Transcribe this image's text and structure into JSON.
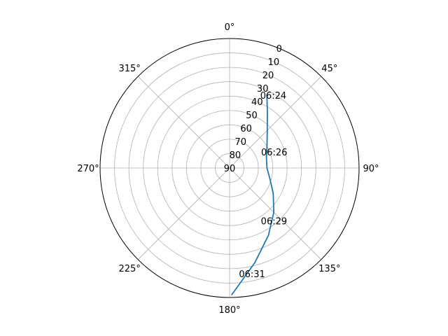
{
  "chart_data": {
    "type": "line",
    "projection": "polar",
    "theta_zero_location": "N",
    "theta_direction": "clockwise",
    "r_axis": {
      "range": [
        90,
        0
      ],
      "description": "elevation, 90 at center, 0 at rim",
      "ticks": [
        0,
        10,
        20,
        30,
        40,
        50,
        60,
        70,
        80,
        90
      ],
      "tick_labels": [
        "0",
        "10",
        "20",
        "30",
        "40",
        "50",
        "60",
        "70",
        "80",
        "90"
      ],
      "label_angle_deg": 22.5
    },
    "theta_axis": {
      "ticks_deg": [
        0,
        45,
        90,
        135,
        180,
        225,
        270,
        315
      ],
      "tick_labels": [
        "0°",
        "45°",
        "90°",
        "135°",
        "180°",
        "225°",
        "270°",
        "315°"
      ]
    },
    "grid": true,
    "series": [
      {
        "color": "#1f77b4",
        "points": [
          {
            "azimuth": 27,
            "elevation": 33
          },
          {
            "azimuth": 34,
            "elevation": 43
          },
          {
            "azimuth": 45,
            "elevation": 53
          },
          {
            "azimuth": 60,
            "elevation": 60
          },
          {
            "azimuth": 75,
            "elevation": 63.5
          },
          {
            "azimuth": 90,
            "elevation": 64
          },
          {
            "azimuth": 105,
            "elevation": 61
          },
          {
            "azimuth": 120,
            "elevation": 55
          },
          {
            "azimuth": 135,
            "elevation": 46.5
          },
          {
            "azimuth": 150,
            "elevation": 36
          },
          {
            "azimuth": 165,
            "elevation": 22
          },
          {
            "azimuth": 179,
            "elevation": 2
          }
        ]
      }
    ],
    "annotations": [
      {
        "text": "06:24",
        "azimuth": 31,
        "elevation": 31
      },
      {
        "text": "06:26",
        "azimuth": 70,
        "elevation": 57
      },
      {
        "text": "06:29",
        "azimuth": 140,
        "elevation": 42
      },
      {
        "text": "06:31",
        "azimuth": 168,
        "elevation": 15
      }
    ]
  }
}
